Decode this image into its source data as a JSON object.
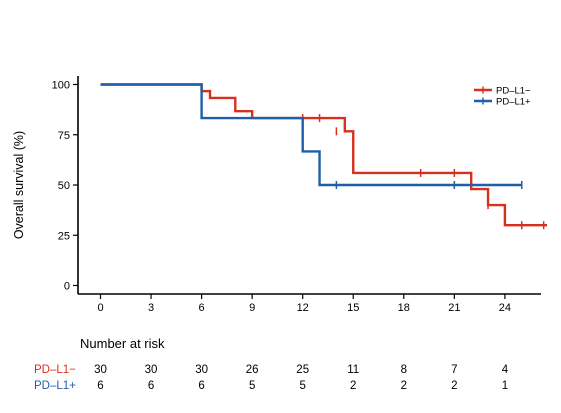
{
  "chart_data": {
    "type": "line",
    "subtype": "kaplan-meier",
    "title": "",
    "xlabel": "",
    "ylabel": "Overall survival (%)",
    "xlim": [
      -1.5,
      26.5
    ],
    "ylim": [
      -3,
      104
    ],
    "x_ticks": [
      0,
      3,
      6,
      9,
      12,
      15,
      18,
      21,
      24
    ],
    "y_ticks": [
      0,
      25,
      50,
      75,
      100
    ],
    "grid": false,
    "legend_position": "top-right",
    "series": [
      {
        "name": "PD–L1−",
        "color": "#d7301f",
        "steps": [
          [
            0,
            100
          ],
          [
            6,
            96.7
          ],
          [
            6.5,
            93.3
          ],
          [
            8,
            86.7
          ],
          [
            9,
            83.3
          ],
          [
            14.5,
            76.7
          ],
          [
            15,
            56
          ],
          [
            22,
            48
          ],
          [
            23,
            40
          ],
          [
            24,
            30
          ],
          [
            26.5,
            30
          ]
        ],
        "censored": [
          [
            12,
            83.3
          ],
          [
            13,
            83.3
          ],
          [
            14,
            76.7
          ],
          [
            19,
            56
          ],
          [
            21,
            56
          ],
          [
            23,
            40
          ],
          [
            25,
            30
          ],
          [
            26.3,
            30
          ]
        ]
      },
      {
        "name": "PD–L1+",
        "color": "#1f5fa8",
        "steps": [
          [
            0,
            100
          ],
          [
            6,
            83.3
          ],
          [
            12,
            66.7
          ],
          [
            13,
            50
          ],
          [
            25,
            50
          ]
        ],
        "censored": [
          [
            14,
            50
          ],
          [
            21,
            50
          ],
          [
            25,
            50
          ]
        ]
      }
    ],
    "risk_table": {
      "title": "Number at risk",
      "times": [
        0,
        3,
        6,
        9,
        12,
        15,
        18,
        21,
        24
      ],
      "rows": [
        {
          "label": "PD–L1−",
          "color": "#d7301f",
          "values": [
            "30",
            "30",
            "30",
            "26",
            "25",
            "11",
            "8",
            "7",
            "4"
          ]
        },
        {
          "label": "PD–L1+",
          "color": "#1f5fa8",
          "values": [
            "6",
            "6",
            "6",
            "5",
            "5",
            "2",
            "2",
            "2",
            "1"
          ]
        }
      ]
    }
  }
}
